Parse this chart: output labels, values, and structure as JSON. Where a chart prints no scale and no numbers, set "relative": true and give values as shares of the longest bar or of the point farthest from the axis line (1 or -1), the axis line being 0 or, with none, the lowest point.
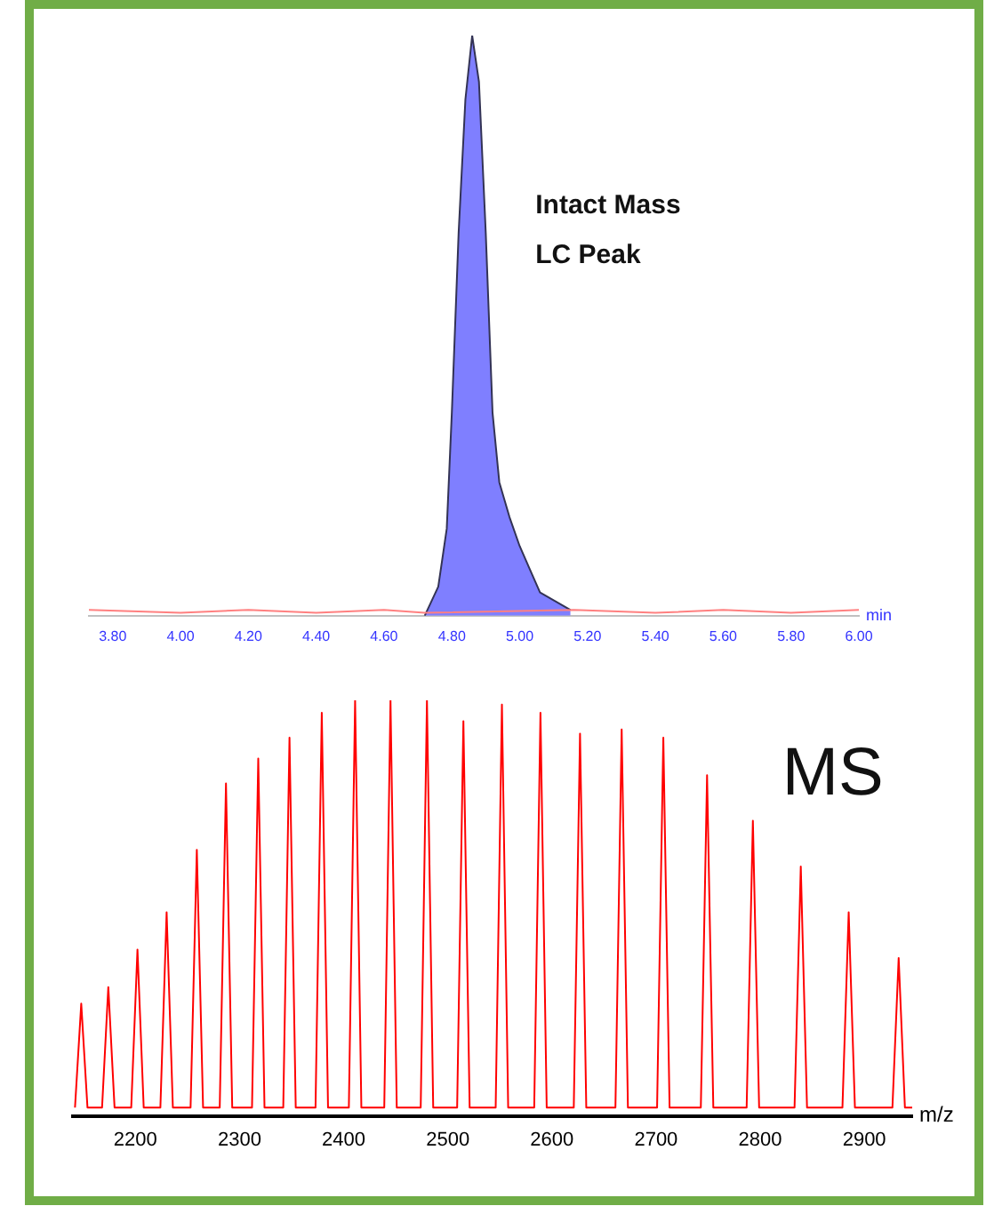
{
  "chart_data": [
    {
      "type": "area",
      "annotations": [
        "Intact Mass\nLC Peak"
      ],
      "xlabel": "min",
      "relative": true,
      "grid": false,
      "legend": false,
      "tick_labels": "x",
      "marker": "none",
      "xlim": [
        3.73,
        6.0
      ],
      "xticks": [
        {
          "value": 3.8,
          "label": "3.80"
        },
        {
          "value": 4.0,
          "label": "4.00"
        },
        {
          "value": 4.2,
          "label": "4.20"
        },
        {
          "value": 4.4,
          "label": "4.40"
        },
        {
          "value": 4.6,
          "label": "4.60"
        },
        {
          "value": 4.8,
          "label": "4.80"
        },
        {
          "value": 5.0,
          "label": "5.00"
        },
        {
          "value": 5.2,
          "label": "5.20"
        },
        {
          "value": 5.4,
          "label": "5.40"
        },
        {
          "value": 5.6,
          "label": "5.60"
        },
        {
          "value": 5.8,
          "label": "5.80"
        },
        {
          "value": 6.0,
          "label": "6.00"
        }
      ],
      "series": [
        {
          "type": "line",
          "color": "#ff8080",
          "x": [
            3.73,
            4.0,
            4.2,
            4.4,
            4.6,
            4.72,
            5.16,
            5.4,
            5.6,
            5.8,
            6.0
          ],
          "values": [
            0.01,
            0.005,
            0.01,
            0.005,
            0.01,
            0.005,
            0.01,
            0.005,
            0.01,
            0.005,
            0.01
          ]
        },
        {
          "type": "area",
          "color": "#7f7fff",
          "x": [
            4.72,
            4.76,
            4.785,
            4.8,
            4.82,
            4.84,
            4.86,
            4.88,
            4.9,
            4.92,
            4.94,
            4.97,
            5.0,
            5.03,
            5.06,
            5.15
          ],
          "values": [
            0,
            0.05,
            0.15,
            0.35,
            0.66,
            0.89,
            1,
            0.92,
            0.66,
            0.35,
            0.23,
            0.17,
            0.12,
            0.08,
            0.04,
            0.01
          ]
        }
      ]
    },
    {
      "type": "line",
      "annotations": [
        "MS"
      ],
      "xlabel": "m/z",
      "relative": true,
      "grid": false,
      "legend": false,
      "tick_labels": "x",
      "marker": "none",
      "xlim": [
        2140,
        2946
      ],
      "xticks": [
        2200,
        2300,
        2400,
        2500,
        2600,
        2700,
        2800,
        2900
      ],
      "series": [
        {
          "color": "#ff0000",
          "x": [
            2142,
            2148,
            2154,
            2168,
            2174,
            2180,
            2196,
            2202,
            2208,
            2224,
            2230,
            2236,
            2253,
            2259,
            2265,
            2281,
            2287,
            2293,
            2312,
            2318,
            2324,
            2342,
            2348,
            2354,
            2373,
            2379,
            2385,
            2405,
            2411,
            2417,
            2439,
            2445,
            2451,
            2474,
            2480,
            2486,
            2509,
            2515,
            2521,
            2546,
            2552,
            2558,
            2583,
            2589,
            2595,
            2621,
            2627,
            2633,
            2661,
            2667,
            2673,
            2701,
            2707,
            2713,
            2743,
            2749,
            2755,
            2787,
            2793,
            2799,
            2833,
            2839,
            2845,
            2879,
            2885,
            2891,
            2927,
            2933,
            2939,
            2946
          ],
          "values": [
            0.02,
            0.27,
            0.02,
            0.02,
            0.31,
            0.02,
            0.02,
            0.4,
            0.02,
            0.02,
            0.49,
            0.02,
            0.02,
            0.64,
            0.02,
            0.02,
            0.8,
            0.02,
            0.02,
            0.86,
            0.02,
            0.02,
            0.91,
            0.02,
            0.02,
            0.97,
            0.02,
            0.02,
            1,
            0.02,
            0.02,
            1,
            0.02,
            0.02,
            1,
            0.02,
            0.02,
            0.95,
            0.02,
            0.02,
            0.99,
            0.02,
            0.02,
            0.97,
            0.02,
            0.02,
            0.92,
            0.02,
            0.02,
            0.93,
            0.02,
            0.02,
            0.91,
            0.02,
            0.02,
            0.82,
            0.02,
            0.02,
            0.71,
            0.02,
            0.02,
            0.6,
            0.02,
            0.02,
            0.49,
            0.02,
            0.02,
            0.38,
            0.02,
            0.02
          ]
        }
      ]
    }
  ]
}
